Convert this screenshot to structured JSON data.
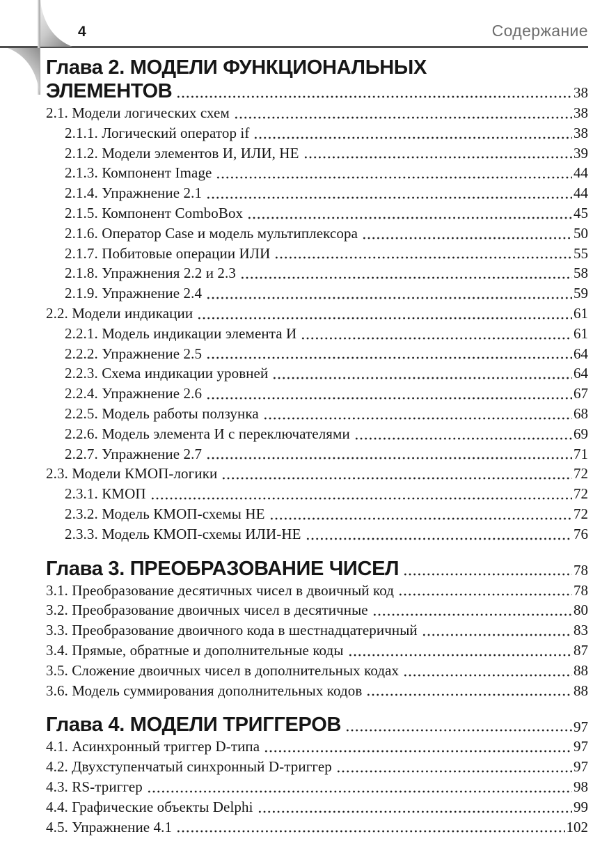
{
  "colors": {
    "ink": "#161616",
    "muted": "#6d6d6d",
    "rule": "#4d4d4d"
  },
  "page_header": {
    "page_number": "4",
    "title": "Содержание"
  },
  "toc": {
    "sections": [
      {
        "level": "chapter",
        "label": "Глава 2. МОДЕЛИ ФУНКЦИОНАЛЬНЫХ\nЭЛЕМЕНТОВ",
        "page": "38"
      },
      {
        "level": "l1",
        "label": "2.1.  Модели логических схем",
        "page": "38"
      },
      {
        "level": "l2",
        "label": "2.1.1.  Логический оператор if",
        "page": "38"
      },
      {
        "level": "l2",
        "label": "2.1.2. Модели элементов И, ИЛИ, НЕ",
        "page": "39"
      },
      {
        "level": "l2",
        "label": "2.1.3. Компонент Image",
        "page": "44"
      },
      {
        "level": "l2",
        "label": "2.1.4. Упражнение 2.1",
        "page": "44"
      },
      {
        "level": "l2",
        "label": "2.1.5. Компонент ComboBox",
        "page": "45"
      },
      {
        "level": "l2",
        "label": "2.1.6. Оператор Case и модель мультиплексора",
        "page": "50"
      },
      {
        "level": "l2",
        "label": "2.1.7. Побитовые операции ИЛИ",
        "page": "55"
      },
      {
        "level": "l2",
        "label": "2.1.8. Упражнения 2.2 и 2.3",
        "page": "58"
      },
      {
        "level": "l2",
        "label": "2.1.9. Упражнение 2.4",
        "page": "59"
      },
      {
        "level": "l1",
        "label": "2.2. Модели индикации",
        "page": "61"
      },
      {
        "level": "l2",
        "label": "2.2.1. Модель индикации элемента И",
        "page": "61"
      },
      {
        "level": "l2",
        "label": "2.2.2. Упражнение 2.5",
        "page": "64"
      },
      {
        "level": "l2",
        "label": "2.2.3. Схема индикации уровней",
        "page": "64"
      },
      {
        "level": "l2",
        "label": "2.2.4. Упражнение 2.6",
        "page": "67"
      },
      {
        "level": "l2",
        "label": "2.2.5. Модель работы ползунка",
        "page": "68"
      },
      {
        "level": "l2",
        "label": "2.2.6. Модель элемента И с переключателями",
        "page": "69"
      },
      {
        "level": "l2",
        "label": "2.2.7. Упражнение 2.7",
        "page": "71"
      },
      {
        "level": "l1",
        "label": "2.3. Модели КМОП-логики",
        "page": "72"
      },
      {
        "level": "l2",
        "label": "2.3.1. КМОП",
        "page": "72"
      },
      {
        "level": "l2",
        "label": "2.3.2. Модель КМОП-схемы НЕ",
        "page": "72"
      },
      {
        "level": "l2",
        "label": "2.3.3. Модель КМОП-схемы ИЛИ-НЕ",
        "page": "76"
      },
      {
        "level": "chapter",
        "label": "Глава 3. ПРЕОБРАЗОВАНИЕ ЧИСЕЛ",
        "page": "78"
      },
      {
        "level": "l1",
        "label": "3.1. Преобразование десятичных чисел в двоичный код",
        "page": "78"
      },
      {
        "level": "l1",
        "label": "3.2. Преобразование двоичных чисел в десятичные",
        "page": "80"
      },
      {
        "level": "l1",
        "label": "3.3. Преобразование двоичного кода в шестнадцатеричный",
        "page": "83"
      },
      {
        "level": "l1",
        "label": "3.4. Прямые, обратные и дополнительные коды",
        "page": "87"
      },
      {
        "level": "l1",
        "label": "3.5. Сложение двоичных чисел в дополнительных кодах",
        "page": "88"
      },
      {
        "level": "l1",
        "label": "3.6. Модель суммирования дополнительных кодов",
        "page": "88"
      },
      {
        "level": "chapter",
        "label": "Глава 4. МОДЕЛИ ТРИГГЕРОВ",
        "page": "97"
      },
      {
        "level": "l1",
        "label": "4.1. Асинхронный триггер D-типа",
        "page": "97"
      },
      {
        "level": "l1",
        "label": "4.2. Двухступенчатый синхронный D-триггер",
        "page": "97"
      },
      {
        "level": "l1",
        "label": "4.3. RS-триггер",
        "page": "98"
      },
      {
        "level": "l1",
        "label": "4.4. Графические объекты Delphi",
        "page": "99"
      },
      {
        "level": "l1",
        "label": "4.5. Упражнение 4.1",
        "page": "102"
      }
    ]
  }
}
